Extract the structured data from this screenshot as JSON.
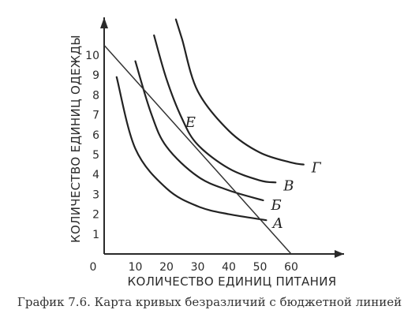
{
  "caption": "График 7.6. Карта кривых безразличий с бюджетной линией",
  "chart_data": {
    "type": "line",
    "title": "",
    "xlabel": "КОЛИЧЕСТВО ЕДИНИЦ ПИТАНИЯ",
    "ylabel": "КОЛИЧЕСТВО ЕДИНИЦ ОДЕЖДЫ",
    "xlim": [
      0,
      65
    ],
    "ylim": [
      0,
      11
    ],
    "x_ticks": [
      10,
      20,
      30,
      40,
      50,
      60
    ],
    "y_ticks": [
      1,
      2,
      3,
      4,
      5,
      6,
      7,
      8,
      9,
      10
    ],
    "origin_label": "0",
    "grid": false,
    "series": [
      {
        "name": "А",
        "kind": "indifference_curve",
        "points": [
          [
            4,
            8.9
          ],
          [
            10,
            5.3
          ],
          [
            20,
            3.3
          ],
          [
            30,
            2.4
          ],
          [
            40,
            2.0
          ],
          [
            52,
            1.7
          ]
        ]
      },
      {
        "name": "Б",
        "kind": "indifference_curve",
        "points": [
          [
            10,
            9.7
          ],
          [
            15,
            7.1
          ],
          [
            20,
            5.4
          ],
          [
            30,
            3.9
          ],
          [
            40,
            3.2
          ],
          [
            51,
            2.7
          ]
        ]
      },
      {
        "name": "В",
        "kind": "indifference_curve",
        "points": [
          [
            16,
            11.0
          ],
          [
            20,
            8.8
          ],
          [
            25,
            6.8
          ],
          [
            30,
            5.5
          ],
          [
            40,
            4.3
          ],
          [
            50,
            3.7
          ],
          [
            55,
            3.6
          ]
        ]
      },
      {
        "name": "Г",
        "kind": "indifference_curve",
        "points": [
          [
            23,
            11.8
          ],
          [
            25,
            10.8
          ],
          [
            30,
            8.2
          ],
          [
            40,
            6.2
          ],
          [
            50,
            5.1
          ],
          [
            60,
            4.6
          ],
          [
            64,
            4.5
          ]
        ]
      },
      {
        "name": "",
        "kind": "budget_line",
        "points": [
          [
            0,
            10.5
          ],
          [
            60,
            0
          ]
        ]
      }
    ],
    "annotations": [
      {
        "label": "Е",
        "x": 25,
        "y": 6.0
      }
    ]
  }
}
